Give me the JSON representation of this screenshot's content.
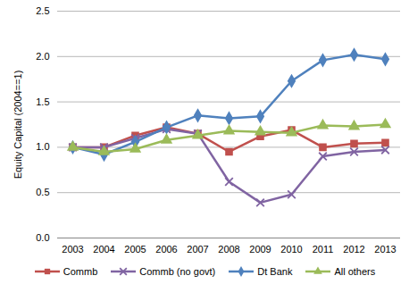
{
  "chart_data": {
    "type": "line",
    "y_label": "Equity Capital (2004==1)",
    "categories": [
      "2003",
      "2004",
      "2005",
      "2006",
      "2007",
      "2008",
      "2009",
      "2010",
      "2011",
      "2012",
      "2013"
    ],
    "series": [
      {
        "name": "Commb",
        "color": "#c0504d",
        "marker": "square",
        "values": [
          1.0,
          1.0,
          1.13,
          1.22,
          1.15,
          0.95,
          1.12,
          1.19,
          1.0,
          1.04,
          1.05
        ]
      },
      {
        "name": "Commb (no govt)",
        "color": "#8064a2",
        "marker": "x",
        "values": [
          1.0,
          1.0,
          1.1,
          1.2,
          1.15,
          0.62,
          0.39,
          0.48,
          0.9,
          0.95,
          0.97
        ]
      },
      {
        "name": "Dt Bank",
        "color": "#4f81bd",
        "marker": "diamond",
        "values": [
          1.0,
          0.92,
          1.06,
          1.22,
          1.35,
          1.32,
          1.34,
          1.73,
          1.96,
          2.02,
          1.97
        ]
      },
      {
        "name": "All others",
        "color": "#9bbb59",
        "marker": "triangle",
        "values": [
          1.0,
          0.95,
          0.98,
          1.08,
          1.13,
          1.18,
          1.17,
          1.16,
          1.24,
          1.23,
          1.25
        ]
      }
    ],
    "ylim": [
      0,
      2.5
    ],
    "yticks": [
      {
        "value": 0,
        "label": "0.0"
      },
      0.5,
      {
        "value": 1,
        "label": "1.0"
      },
      1.5,
      {
        "value": 2,
        "label": "2.0"
      },
      2.5
    ],
    "grid": true,
    "legend": "bottom"
  }
}
